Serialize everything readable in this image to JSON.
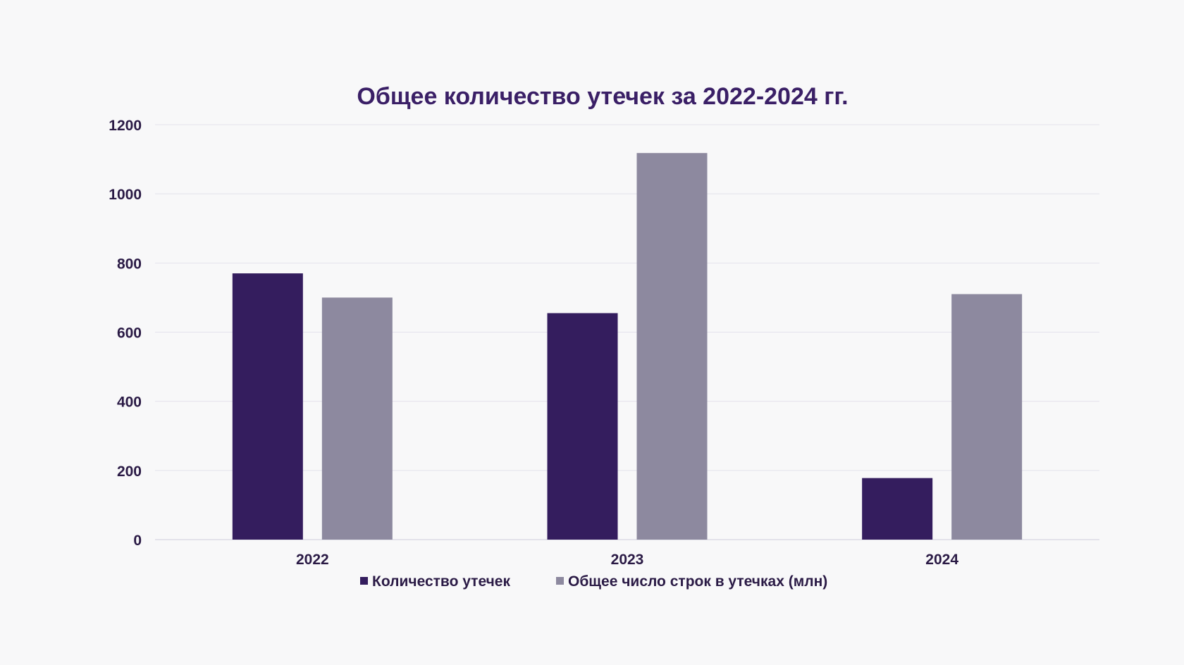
{
  "chart_data": {
    "type": "bar",
    "title": "Общее количество утечек за 2022-2024 гг.",
    "xlabel": "",
    "ylabel": "",
    "categories": [
      "2022",
      "2023",
      "2024"
    ],
    "series": [
      {
        "name": "Количество утечек",
        "color": "#341d5e",
        "values": [
          770,
          655,
          178
        ]
      },
      {
        "name": "Общее число строк в утечках (млн)",
        "color": "#8d899f",
        "values": [
          700,
          1118,
          710
        ]
      }
    ],
    "ylim": [
      0,
      1200
    ],
    "yticks": [
      "0",
      "200",
      "400",
      "600",
      "800",
      "1000",
      "1200"
    ],
    "grid": true,
    "legend": "bottom"
  }
}
